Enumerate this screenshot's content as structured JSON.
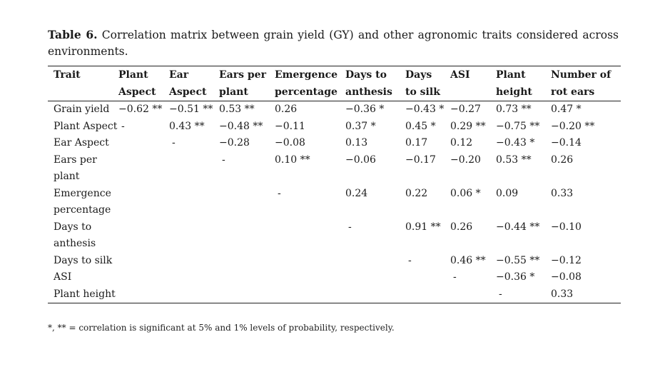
{
  "caption": {
    "label": "Table 6.",
    "text": " Correlation matrix between grain yield (GY) and other agronomic traits considered across environments."
  },
  "table": {
    "headers": [
      [
        "Trait",
        ""
      ],
      [
        "Plant",
        "Aspect"
      ],
      [
        "Ear",
        "Aspect"
      ],
      [
        "Ears per",
        "plant"
      ],
      [
        "Emergence",
        "percentage"
      ],
      [
        "Days to",
        "anthesis"
      ],
      [
        "Days",
        "to silk"
      ],
      [
        "ASI",
        ""
      ],
      [
        "Plant",
        "height"
      ],
      [
        "Number of",
        "rot ears"
      ]
    ],
    "rows": [
      [
        "Grain yield",
        "−0.62 **",
        "−0.51 **",
        "0.53 **",
        "0.26",
        "−0.36 *",
        "−0.43 *",
        "−0.27",
        "0.73 **",
        "0.47 *"
      ],
      [
        "Plant Aspect",
        "-",
        "0.43 **",
        "−0.48 **",
        "−0.11",
        "0.37 *",
        "0.45 *",
        "0.29 **",
        "−0.75 **",
        "−0.20 **"
      ],
      [
        "Ear Aspect",
        "",
        "-",
        "−0.28",
        "−0.08",
        "0.13",
        "0.17",
        "0.12",
        "−0.43 *",
        "−0.14"
      ],
      [
        "Ears per plant",
        "",
        "",
        "-",
        "0.10 **",
        "−0.06",
        "−0.17",
        "−0.20",
        "0.53 **",
        "0.26"
      ],
      [
        "Emergence percentage",
        "",
        "",
        "",
        "-",
        "0.24",
        "0.22",
        "0.06 *",
        "0.09",
        "0.33"
      ],
      [
        "Days to anthesis",
        "",
        "",
        "",
        "",
        "-",
        "0.91 **",
        "0.26",
        "−0.44 **",
        "−0.10"
      ],
      [
        "Days to silk",
        "",
        "",
        "",
        "",
        "",
        "-",
        "0.46 **",
        "−0.55 **",
        "−0.12"
      ],
      [
        "ASI",
        "",
        "",
        "",
        "",
        "",
        "",
        "-",
        "−0.36 *",
        "−0.08"
      ],
      [
        "Plant height",
        "",
        "",
        "",
        "",
        "",
        "",
        "",
        "-",
        "0.33"
      ]
    ]
  },
  "footnote": "*, ** = correlation is significant at 5% and 1% levels of probability, respectively."
}
